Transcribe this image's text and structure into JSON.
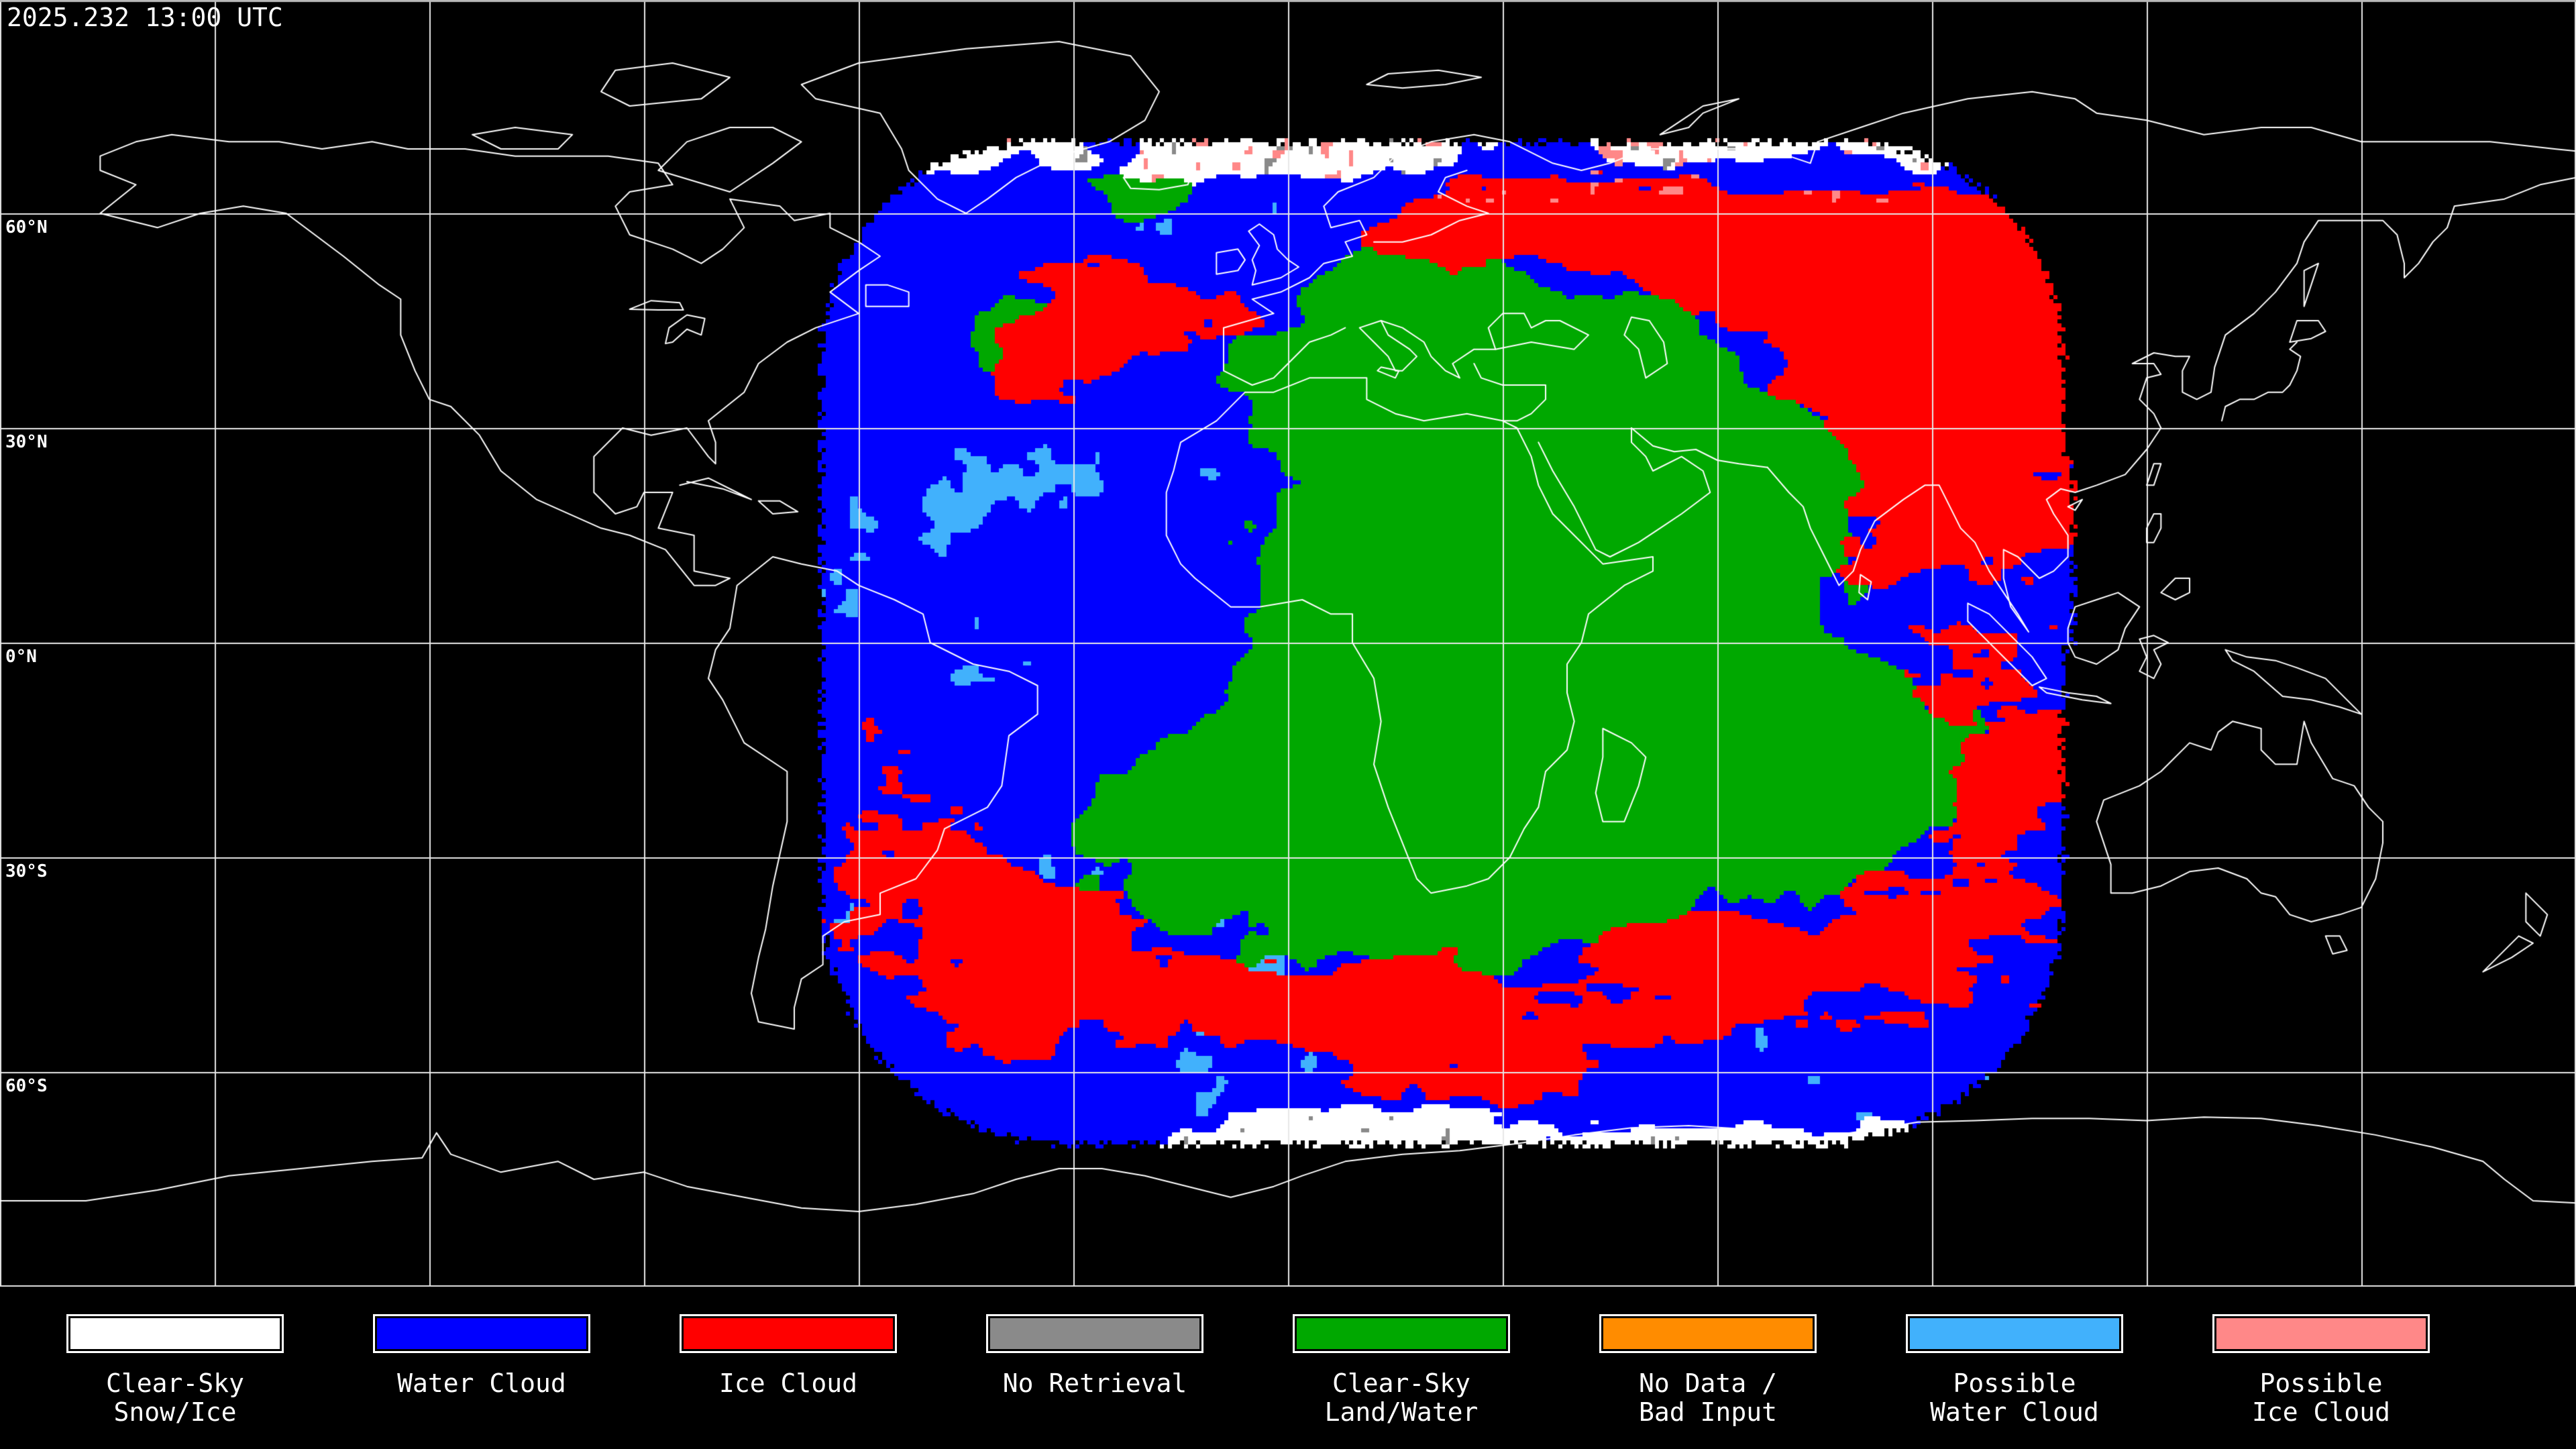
{
  "header": {
    "timestamp": "2025.232 13:00 UTC"
  },
  "map": {
    "lat_labels": [
      {
        "label": "60°N",
        "lat": 60
      },
      {
        "label": "30°N",
        "lat": 30
      },
      {
        "label": "0°N",
        "lat": 0
      },
      {
        "label": "30°S",
        "lat": -30
      },
      {
        "label": "60°S",
        "lat": -60
      }
    ],
    "grid": {
      "lon_step_deg": 30,
      "lat_step_deg": 30,
      "line_color": "#E8E8E8",
      "top_border_color": "#B9B9B9"
    },
    "colors": {
      "background": "#000000",
      "coastline": "#FFFFFF"
    }
  },
  "legend": {
    "items": [
      {
        "key": "snow_ice",
        "label_lines": [
          "Clear-Sky",
          "Snow/Ice"
        ],
        "color": "#FFFFFF"
      },
      {
        "key": "water_cloud",
        "label_lines": [
          "Water Cloud"
        ],
        "color": "#0000FF"
      },
      {
        "key": "ice_cloud",
        "label_lines": [
          "Ice Cloud"
        ],
        "color": "#FF0000"
      },
      {
        "key": "no_retrieval",
        "label_lines": [
          "No Retrieval"
        ],
        "color": "#8A8A8A"
      },
      {
        "key": "clear_land",
        "label_lines": [
          "Clear-Sky",
          "Land/Water"
        ],
        "color": "#00A800"
      },
      {
        "key": "no_data",
        "label_lines": [
          "No Data /",
          "Bad Input"
        ],
        "color": "#FF8C00"
      },
      {
        "key": "possible_water",
        "label_lines": [
          "Possible",
          "Water Cloud"
        ],
        "color": "#41B1FC"
      },
      {
        "key": "possible_ice",
        "label_lines": [
          "Possible",
          "Ice Cloud"
        ],
        "color": "#FF8888"
      }
    ]
  }
}
